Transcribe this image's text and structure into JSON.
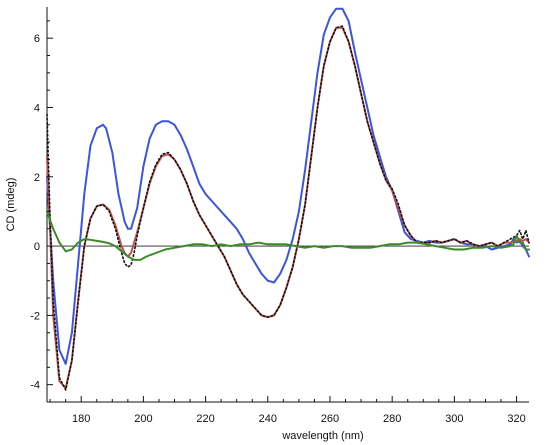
{
  "chart_data": {
    "type": "line",
    "xlabel": "wavelength (nm)",
    "ylabel": "CD (mdeg)",
    "xlim": [
      169,
      324
    ],
    "ylim": [
      -4.5,
      6.9
    ],
    "xticks": [
      180,
      200,
      220,
      240,
      260,
      280,
      300,
      320
    ],
    "yticks": [
      -4,
      -2,
      0,
      2,
      4,
      6
    ],
    "zero_line": true,
    "grid": false,
    "legend": "none",
    "series": [
      {
        "color": "#3a55e0",
        "style": "solid",
        "x": [
          169,
          171,
          173,
          175,
          177,
          179,
          181,
          183,
          185,
          187,
          188,
          190,
          192,
          194,
          195,
          196,
          198,
          200,
          202,
          204,
          206,
          208,
          210,
          212,
          214,
          216,
          218,
          220,
          222,
          224,
          226,
          228,
          230,
          232,
          234,
          236,
          238,
          240,
          242,
          244,
          246,
          248,
          250,
          252,
          254,
          256,
          258,
          260,
          262,
          264,
          266,
          268,
          270,
          272,
          274,
          276,
          278,
          280,
          282,
          284,
          286,
          288,
          290,
          292,
          294,
          296,
          298,
          300,
          302,
          304,
          306,
          308,
          310,
          312,
          314,
          316,
          318,
          319,
          320,
          321,
          322,
          323,
          324
        ],
        "y": [
          2.0,
          -1.0,
          -3.0,
          -3.4,
          -2.5,
          -0.5,
          1.5,
          2.9,
          3.4,
          3.5,
          3.4,
          2.7,
          1.5,
          0.7,
          0.5,
          0.5,
          1.1,
          2.3,
          3.1,
          3.5,
          3.6,
          3.6,
          3.5,
          3.2,
          2.8,
          2.3,
          1.8,
          1.5,
          1.3,
          1.1,
          0.9,
          0.7,
          0.5,
          0.2,
          -0.2,
          -0.5,
          -0.8,
          -1.0,
          -1.05,
          -0.8,
          -0.4,
          0.2,
          1.0,
          2.2,
          3.6,
          5.0,
          6.1,
          6.6,
          6.85,
          6.85,
          6.5,
          5.6,
          4.8,
          4.0,
          3.2,
          2.6,
          2.0,
          1.6,
          1.0,
          0.4,
          0.2,
          0.15,
          0.1,
          0.15,
          0.1,
          0.1,
          0.15,
          0.2,
          0.1,
          0.05,
          0.05,
          0.0,
          0.0,
          -0.1,
          -0.05,
          0.0,
          0.05,
          0.2,
          0.1,
          0.15,
          0.0,
          -0.1,
          -0.3
        ]
      },
      {
        "color": "#c0504d",
        "style": "solid",
        "x": [
          169,
          170,
          171,
          173,
          175,
          177,
          179,
          181,
          183,
          185,
          187,
          189,
          191,
          193,
          194,
          195,
          196,
          197,
          198,
          200,
          202,
          204,
          206,
          208,
          210,
          212,
          214,
          216,
          218,
          220,
          222,
          224,
          226,
          228,
          230,
          232,
          234,
          236,
          238,
          240,
          242,
          244,
          246,
          248,
          250,
          252,
          254,
          256,
          258,
          260,
          262,
          264,
          266,
          268,
          270,
          272,
          274,
          276,
          278,
          280,
          282,
          284,
          286,
          288,
          290,
          292,
          294,
          296,
          298,
          300,
          302,
          304,
          306,
          308,
          310,
          312,
          314,
          316,
          318,
          320,
          321,
          322,
          323,
          324
        ],
        "y": [
          2.6,
          0.5,
          -2.0,
          -3.9,
          -4.1,
          -3.3,
          -1.6,
          0.0,
          0.8,
          1.15,
          1.2,
          1.05,
          0.6,
          0.0,
          -0.2,
          -0.3,
          -0.2,
          0.1,
          0.4,
          1.1,
          1.8,
          2.3,
          2.6,
          2.65,
          2.5,
          2.2,
          1.8,
          1.3,
          0.9,
          0.6,
          0.3,
          0.0,
          -0.3,
          -0.7,
          -1.1,
          -1.4,
          -1.6,
          -1.8,
          -2.0,
          -2.05,
          -2.0,
          -1.7,
          -1.2,
          -0.6,
          0.2,
          1.2,
          2.6,
          4.0,
          5.2,
          5.9,
          6.3,
          6.3,
          5.9,
          5.2,
          4.4,
          3.6,
          3.0,
          2.4,
          1.9,
          1.6,
          1.1,
          0.6,
          0.3,
          0.1,
          0.1,
          0.1,
          0.15,
          0.1,
          0.15,
          0.2,
          0.1,
          0.15,
          0.05,
          0.0,
          0.05,
          0.1,
          0.0,
          0.1,
          0.1,
          0.15,
          0.2,
          0.15,
          0.2,
          0.1
        ]
      },
      {
        "color": "#111111",
        "style": "dotted",
        "x": [
          169,
          170,
          171,
          173,
          175,
          177,
          179,
          181,
          183,
          185,
          187,
          189,
          191,
          193,
          194,
          195,
          196,
          197,
          198,
          200,
          202,
          204,
          206,
          208,
          210,
          212,
          214,
          216,
          218,
          220,
          222,
          224,
          226,
          228,
          230,
          232,
          234,
          236,
          238,
          240,
          242,
          244,
          246,
          248,
          250,
          252,
          254,
          256,
          258,
          260,
          262,
          264,
          266,
          268,
          270,
          272,
          274,
          276,
          278,
          280,
          282,
          284,
          286,
          288,
          290,
          292,
          294,
          296,
          298,
          300,
          302,
          304,
          306,
          308,
          310,
          312,
          314,
          316,
          318,
          320,
          321,
          322,
          323,
          324
        ],
        "y": [
          3.8,
          0.8,
          -1.6,
          -3.8,
          -4.15,
          -3.3,
          -1.6,
          0.0,
          0.8,
          1.15,
          1.2,
          1.0,
          0.5,
          -0.2,
          -0.5,
          -0.6,
          -0.55,
          -0.2,
          0.3,
          1.1,
          1.85,
          2.35,
          2.65,
          2.7,
          2.5,
          2.2,
          1.8,
          1.3,
          0.9,
          0.6,
          0.3,
          0.0,
          -0.3,
          -0.7,
          -1.1,
          -1.4,
          -1.6,
          -1.8,
          -2.0,
          -2.05,
          -2.0,
          -1.7,
          -1.2,
          -0.6,
          0.2,
          1.2,
          2.6,
          4.0,
          5.2,
          5.9,
          6.3,
          6.35,
          5.9,
          5.2,
          4.4,
          3.6,
          3.0,
          2.4,
          1.9,
          1.65,
          1.2,
          0.6,
          0.3,
          0.1,
          0.1,
          0.1,
          0.15,
          0.1,
          0.15,
          0.2,
          0.1,
          0.15,
          0.05,
          0.0,
          0.05,
          0.1,
          0.0,
          0.1,
          0.2,
          0.3,
          0.45,
          0.2,
          0.45,
          0.1
        ]
      },
      {
        "color": "#3a8c28",
        "style": "solid",
        "x": [
          169,
          171,
          173,
          175,
          177,
          179,
          181,
          183,
          185,
          187,
          189,
          191,
          193,
          195,
          197,
          199,
          201,
          204,
          207,
          210,
          213,
          216,
          219,
          222,
          225,
          228,
          231,
          234,
          237,
          240,
          243,
          246,
          249,
          252,
          255,
          258,
          261,
          264,
          267,
          270,
          273,
          276,
          279,
          282,
          285,
          288,
          291,
          294,
          297,
          300,
          303,
          306,
          309,
          312,
          315,
          318,
          319,
          320,
          321,
          322,
          323,
          324
        ],
        "y": [
          1.0,
          0.5,
          0.1,
          -0.15,
          -0.1,
          0.1,
          0.2,
          0.18,
          0.15,
          0.12,
          0.08,
          0.0,
          -0.15,
          -0.3,
          -0.4,
          -0.4,
          -0.3,
          -0.2,
          -0.1,
          -0.05,
          0.0,
          0.05,
          0.05,
          0.0,
          0.05,
          0.0,
          0.05,
          0.05,
          0.1,
          0.05,
          0.05,
          0.05,
          0.0,
          -0.05,
          0.0,
          -0.05,
          0.0,
          0.0,
          -0.05,
          -0.05,
          -0.05,
          0.0,
          0.05,
          0.05,
          0.1,
          0.1,
          0.05,
          0.0,
          -0.05,
          -0.1,
          -0.1,
          -0.05,
          -0.05,
          0.0,
          -0.05,
          0.0,
          0.05,
          0.3,
          0.1,
          0.1,
          -0.1,
          -0.1
        ]
      }
    ]
  }
}
